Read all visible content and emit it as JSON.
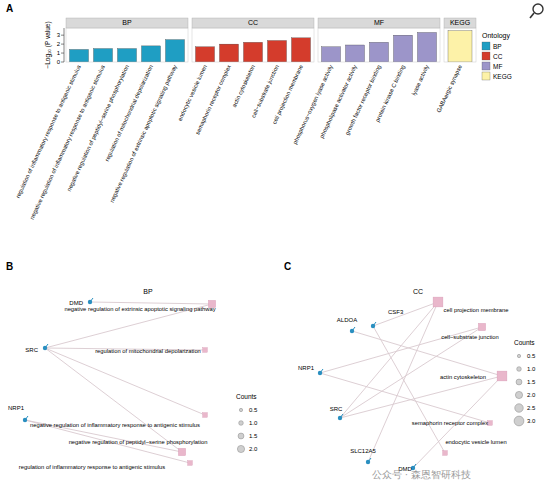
{
  "chart_data": {
    "type": "bar",
    "y_label": "−Log₁₀ (P value)",
    "legend_title": "Ontology",
    "ylim": [
      0,
      3.8
    ],
    "yticks": [
      0,
      1,
      2,
      3
    ],
    "series": [
      {
        "name": "BP",
        "color": "#1f9ec3",
        "categories": [
          "regulation of inflammatory response to antigenic stimulus",
          "negative regulation of inflammatory response to antigenic stimulus",
          "negative regulation of peptidyl−serine phosphorylation",
          "regulation of mitochondrial depolarization",
          "negative regulation of extrinsic apoptotic signaling pathway"
        ],
        "values": [
          1.4,
          1.5,
          1.5,
          1.8,
          2.5
        ]
      },
      {
        "name": "CC",
        "color": "#d43c2c",
        "categories": [
          "endocytic vesicle lumen",
          "semaphorin receptor complex",
          "actin cytoskeleton",
          "cell−substrate junction",
          "cell projection membrane"
        ],
        "values": [
          1.7,
          2.0,
          2.2,
          2.4,
          2.7
        ]
      },
      {
        "name": "MF",
        "color": "#9c95c9",
        "categories": [
          "phosphorus−oxygen lyase activity",
          "phospholipase activator activity",
          "growth factor receptor binding",
          "protein kinase C binding",
          "lyase activity"
        ],
        "values": [
          1.7,
          1.9,
          2.2,
          3.0,
          3.3
        ]
      },
      {
        "name": "KEGG",
        "color": "#fdf2a8",
        "categories": [
          "GABAergic synapse"
        ],
        "values": [
          3.5
        ]
      }
    ]
  },
  "diagrams": [
    {
      "title": "BP",
      "legend_title": "Counts",
      "genes": [
        "DMD",
        "SRC",
        "NRP1"
      ],
      "terms": [
        {
          "label": "negative regulation of extrinsic apoptotic signaling pathway",
          "count": 2
        },
        {
          "label": "regulation of mitochondrial depolarization",
          "count": 1
        },
        {
          "label": "negative regulation of inflammatory response to antigenic stimulus",
          "count": 1
        },
        {
          "label": "negative regulation of peptidyl−serine phosphorylation",
          "count": 2
        },
        {
          "label": "regulation of inflammatory response to antigenic stimulus",
          "count": 1
        }
      ],
      "edges": [
        [
          0,
          0
        ],
        [
          1,
          0
        ],
        [
          1,
          1
        ],
        [
          1,
          2
        ],
        [
          1,
          3
        ],
        [
          2,
          3
        ],
        [
          2,
          4
        ]
      ],
      "count_ticks": [
        0.5,
        {
          "value": 1,
          "label": "1.0"
        },
        1.5,
        {
          "value": 2,
          "label": "2.0"
        }
      ]
    },
    {
      "title": "CC",
      "legend_title": "Counts",
      "genes": [
        "ALDOA",
        "CSF3",
        "NRP1",
        "SRC",
        "SLC12A5",
        "DMD"
      ],
      "terms": [
        {
          "label": "cell projection membrane",
          "count": 3
        },
        {
          "label": "cell−substrate junction",
          "count": 2
        },
        {
          "label": "actin cytoskeleton",
          "count": 3
        },
        {
          "label": "semaphorin receptor complex",
          "count": 1
        },
        {
          "label": "endocytic vesicle lumen",
          "count": 1
        }
      ],
      "edges": [
        [
          1,
          0
        ],
        [
          4,
          0
        ],
        [
          3,
          0
        ],
        [
          2,
          1
        ],
        [
          3,
          1
        ],
        [
          0,
          2
        ],
        [
          3,
          2
        ],
        [
          5,
          2
        ],
        [
          2,
          3
        ],
        [
          1,
          4
        ]
      ],
      "count_ticks": [
        0.5,
        {
          "value": 1,
          "label": "1.0"
        },
        1.5,
        {
          "value": 2,
          "label": "2.0"
        },
        2.5,
        {
          "value": 3,
          "label": "3.0"
        }
      ]
    }
  ],
  "panels": [
    "A",
    "B",
    "C"
  ],
  "watermark": "公众号 · 森恩智研科技"
}
